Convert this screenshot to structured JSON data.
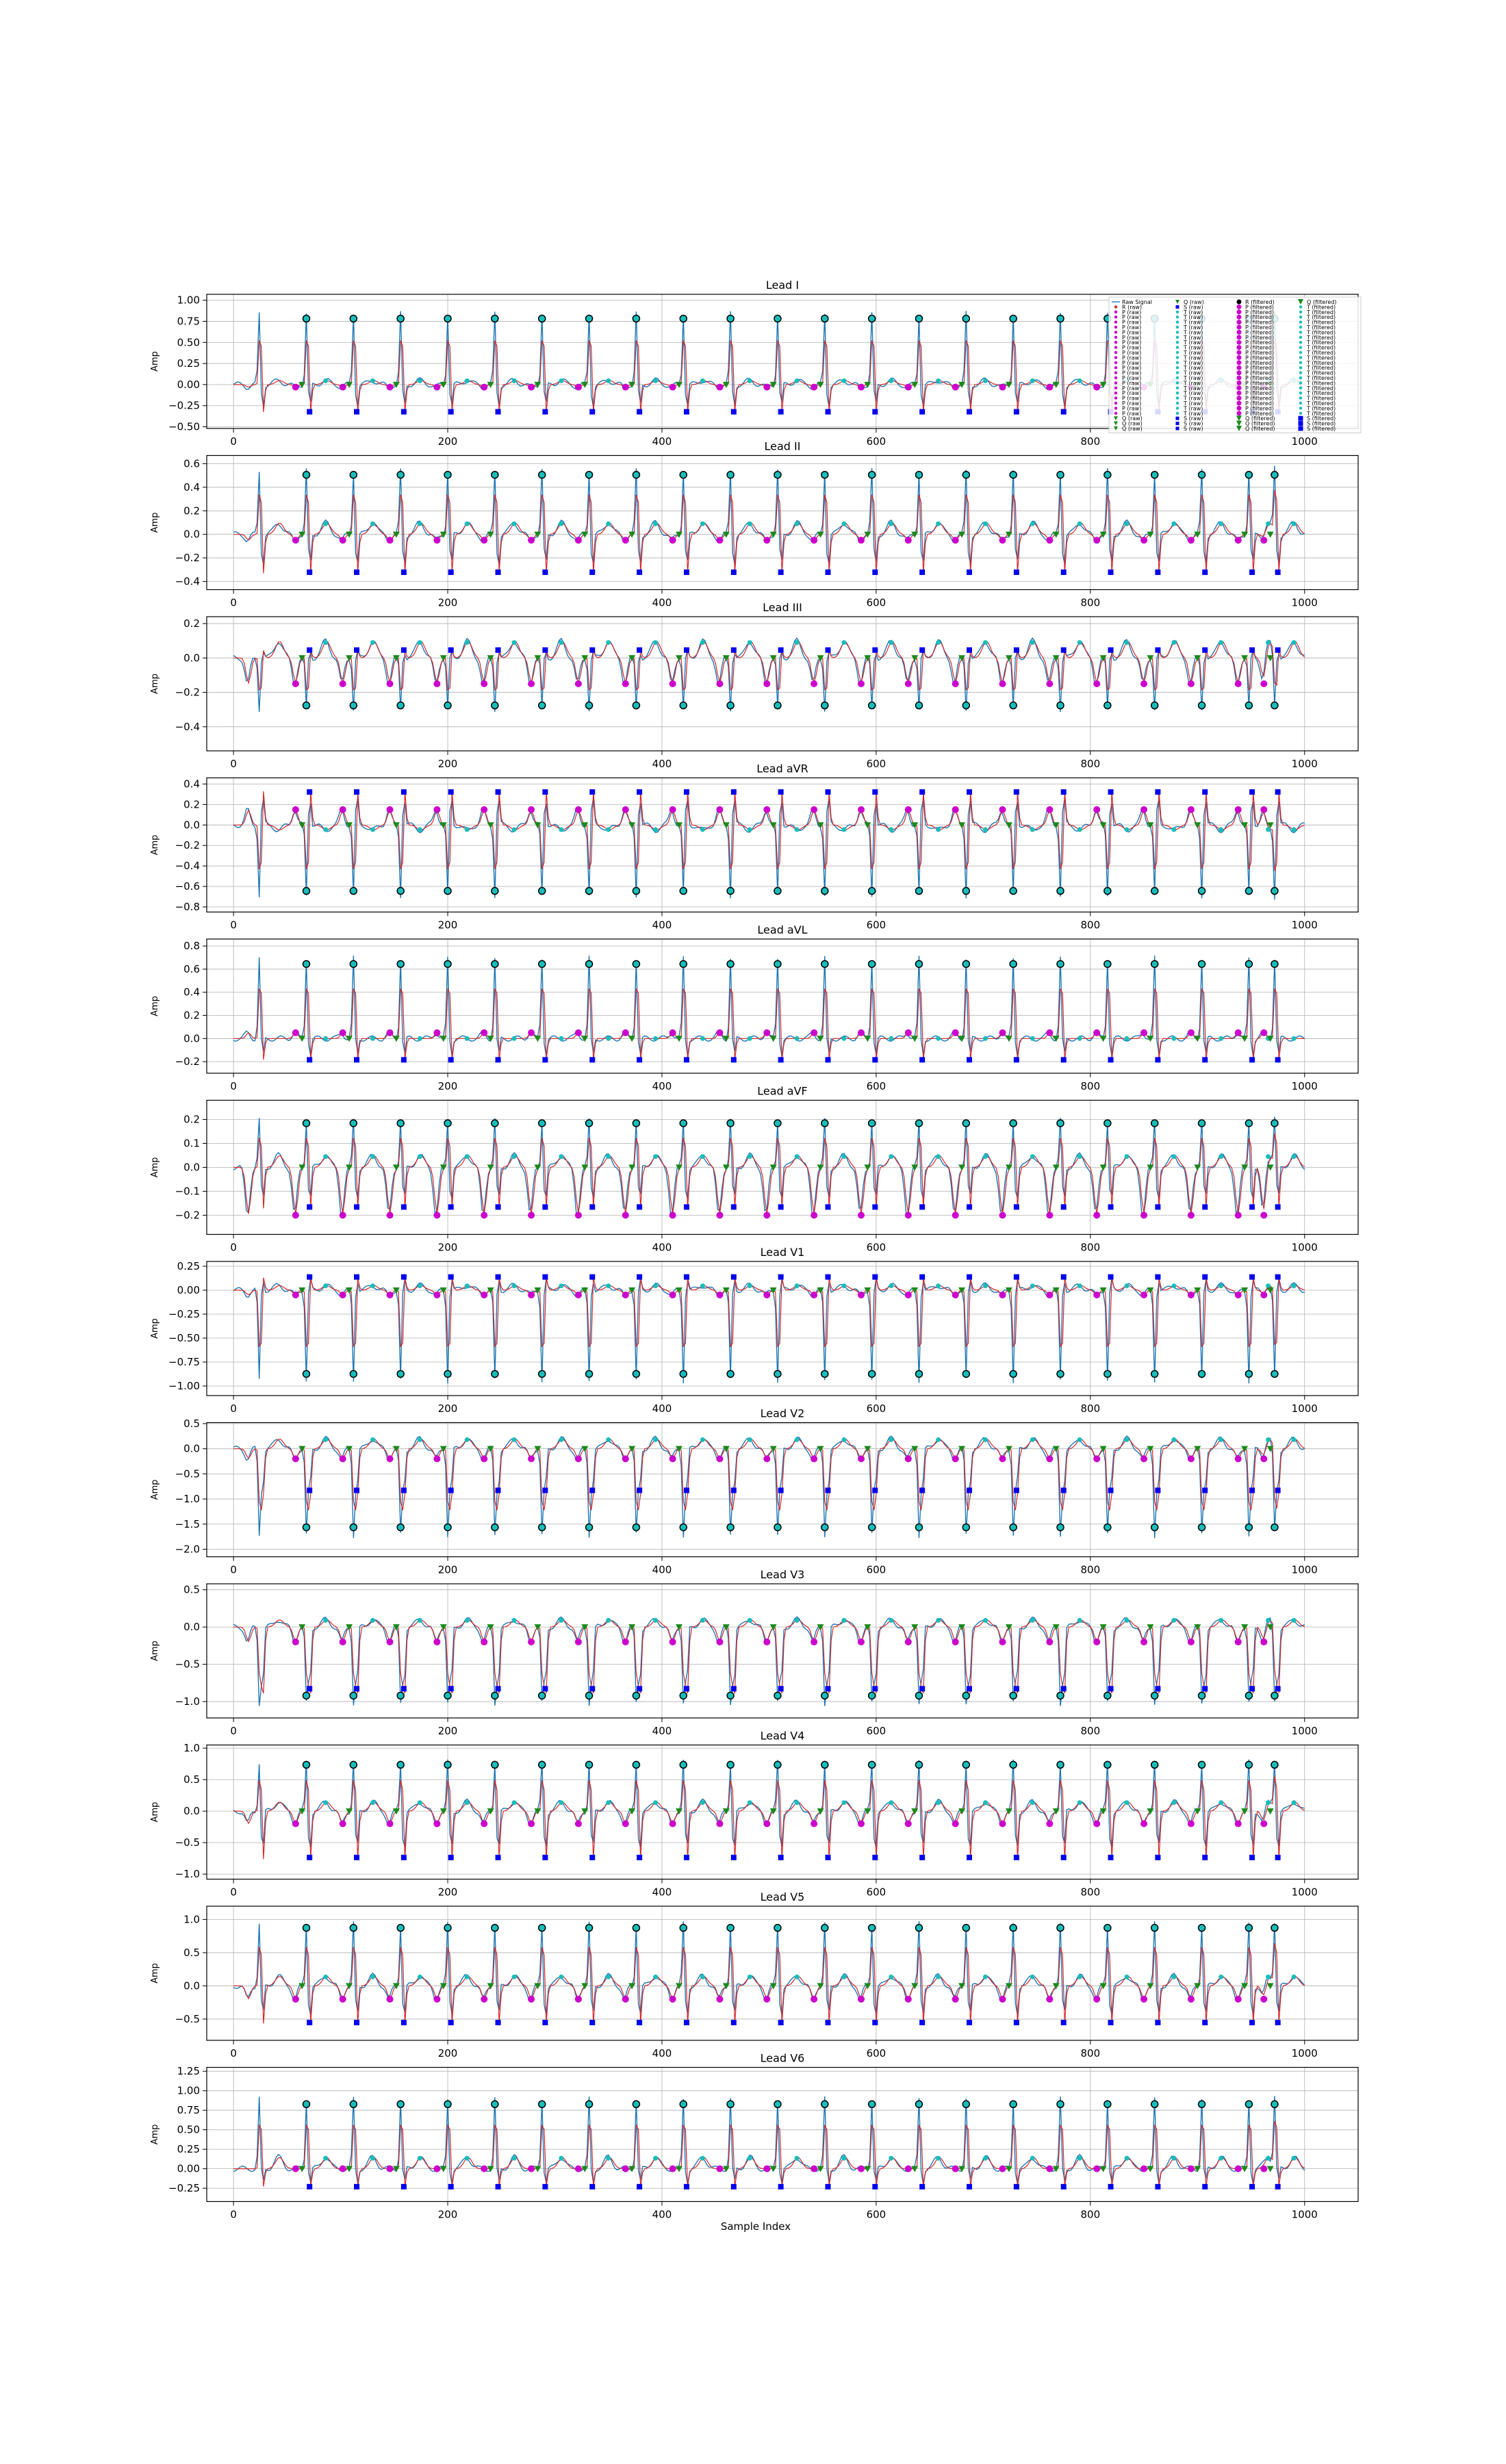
{
  "chart_data": {
    "type": "line",
    "xlabel": "Sample Index",
    "xlim": [
      0,
      1000
    ],
    "xticks": [
      "0",
      "200",
      "400",
      "600",
      "800",
      "1000"
    ],
    "grid": true,
    "colors": {
      "raw": "#1f77b4",
      "filtered": "#d62728",
      "R": "#000000",
      "P": "#cc00cc",
      "Q": "#1a8a1a",
      "S": "#0000ee",
      "T": "#17bebb"
    },
    "series": [
      {
        "name": "Raw Signal"
      },
      {
        "name": "R (filtered)"
      }
    ],
    "beats_x": [
      68,
      112,
      156,
      200,
      244,
      288,
      332,
      376,
      420,
      464,
      508,
      552,
      596,
      640,
      684,
      728,
      772,
      816,
      860,
      904,
      948,
      972
    ],
    "leads": [
      {
        "title": "Lead I",
        "ylabel": "Amp",
        "ylim": [
          -0.52,
          1.07
        ],
        "yticks": [
          "1.00",
          "0.75",
          "0.50",
          "0.25",
          "0.00",
          "−0.25",
          "−0.50"
        ],
        "ytick_values": [
          1.0,
          0.75,
          0.5,
          0.25,
          0.0,
          -0.25,
          -0.5
        ],
        "r": 0.85,
        "s": -0.35,
        "baseline": 0.0,
        "p": -0.03,
        "t": 0.05,
        "show_x_labels": true
      },
      {
        "title": "Lead II",
        "ylabel": "Amp",
        "ylim": [
          -0.47,
          0.67
        ],
        "yticks": [
          "0.6",
          "0.4",
          "0.2",
          "0.0",
          "−0.2",
          "−0.4"
        ],
        "ytick_values": [
          0.6,
          0.4,
          0.2,
          0.0,
          -0.2,
          -0.4
        ],
        "r": 0.55,
        "s": -0.35,
        "baseline": 0.0,
        "p": -0.05,
        "t": 0.1,
        "show_x_labels": true
      },
      {
        "title": "Lead III",
        "ylabel": "Amp",
        "ylim": [
          -0.54,
          0.24
        ],
        "yticks": [
          "0.2",
          "0.0",
          "−0.2",
          "−0.4"
        ],
        "ytick_values": [
          0.2,
          0.0,
          -0.2,
          -0.4
        ],
        "r": -0.3,
        "s": 0.05,
        "baseline": 0.0,
        "p": -0.15,
        "t": 0.1,
        "show_x_labels": true
      },
      {
        "title": "Lead aVR",
        "ylabel": "Amp",
        "ylim": [
          -0.85,
          0.46
        ],
        "yticks": [
          "0.4",
          "0.2",
          "0.0",
          "−0.2",
          "−0.4",
          "−0.6",
          "−0.8"
        ],
        "ytick_values": [
          0.4,
          0.2,
          0.0,
          -0.2,
          -0.4,
          -0.6,
          -0.8
        ],
        "r": -0.7,
        "s": 0.35,
        "baseline": 0.0,
        "p": 0.15,
        "t": -0.05,
        "show_x_labels": true
      },
      {
        "title": "Lead aVL",
        "ylabel": "Amp",
        "ylim": [
          -0.3,
          0.86
        ],
        "yticks": [
          "0.8",
          "0.6",
          "0.4",
          "0.2",
          "0.0",
          "−0.2"
        ],
        "ytick_values": [
          0.8,
          0.6,
          0.4,
          0.2,
          0.0,
          -0.2
        ],
        "r": 0.7,
        "s": -0.2,
        "baseline": 0.0,
        "p": 0.05,
        "t": 0.0,
        "show_x_labels": true
      },
      {
        "title": "Lead aVF",
        "ylabel": "Amp",
        "ylim": [
          -0.28,
          0.28
        ],
        "yticks": [
          "0.2",
          "0.1",
          "0.0",
          "−0.1",
          "−0.2"
        ],
        "ytick_values": [
          0.2,
          0.1,
          0.0,
          -0.1,
          -0.2
        ],
        "r": 0.2,
        "s": -0.18,
        "baseline": 0.0,
        "p": -0.2,
        "t": 0.05,
        "show_x_labels": true
      },
      {
        "title": "Lead V1",
        "ylabel": "Amp",
        "ylim": [
          -1.1,
          0.3
        ],
        "yticks": [
          "0.25",
          "0.00",
          "−0.25",
          "−0.50",
          "−0.75",
          "−1.00"
        ],
        "ytick_values": [
          0.25,
          0.0,
          -0.25,
          -0.5,
          -0.75,
          -1.0
        ],
        "r": -0.95,
        "s": 0.15,
        "baseline": 0.0,
        "p": -0.05,
        "t": 0.05,
        "show_x_labels": true
      },
      {
        "title": "Lead V2",
        "ylabel": "Amp",
        "ylim": [
          -2.15,
          0.52
        ],
        "yticks": [
          "0.5",
          "0.0",
          "−0.5",
          "−1.0",
          "−1.5",
          "−2.0"
        ],
        "ytick_values": [
          0.5,
          0.0,
          -0.5,
          -1.0,
          -1.5,
          -2.0
        ],
        "r": -1.7,
        "s": -0.9,
        "baseline": 0.0,
        "p": -0.2,
        "t": 0.2,
        "show_x_labels": true
      },
      {
        "title": "Lead V3",
        "ylabel": "Amp",
        "ylim": [
          -1.22,
          0.58
        ],
        "yticks": [
          "0.5",
          "0.0",
          "−0.5",
          "−1.0"
        ],
        "ytick_values": [
          0.5,
          0.0,
          -0.5,
          -1.0
        ],
        "r": -1.0,
        "s": -0.9,
        "baseline": 0.0,
        "p": -0.2,
        "t": 0.1,
        "show_x_labels": true
      },
      {
        "title": "Lead V4",
        "ylabel": "Amp",
        "ylim": [
          -1.08,
          1.05
        ],
        "yticks": [
          "1.0",
          "0.5",
          "0.0",
          "−0.5",
          "−1.0"
        ],
        "ytick_values": [
          1.0,
          0.5,
          0.0,
          -0.5,
          -1.0
        ],
        "r": 0.8,
        "s": -0.8,
        "baseline": 0.0,
        "p": -0.2,
        "t": 0.15,
        "show_x_labels": true
      },
      {
        "title": "Lead V5",
        "ylabel": "Amp",
        "ylim": [
          -0.82,
          1.2
        ],
        "yticks": [
          "1.0",
          "0.5",
          "0.0",
          "−0.5"
        ],
        "ytick_values": [
          1.0,
          0.5,
          0.0,
          -0.5
        ],
        "r": 0.95,
        "s": -0.6,
        "baseline": 0.0,
        "p": -0.2,
        "t": 0.15,
        "show_x_labels": true
      },
      {
        "title": "Lead V6",
        "ylabel": "Amp",
        "ylim": [
          -0.42,
          1.3
        ],
        "yticks": [
          "1.25",
          "1.00",
          "0.75",
          "0.50",
          "0.25",
          "0.00",
          "−0.25"
        ],
        "ytick_values": [
          1.25,
          1.0,
          0.75,
          0.5,
          0.25,
          0.0,
          -0.25
        ],
        "r": 0.9,
        "s": -0.25,
        "baseline": 0.0,
        "p": 0.0,
        "t": 0.15,
        "show_x_labels": true
      }
    ],
    "legend": {
      "placement": "top-right",
      "columns": [
        [
          {
            "label": "Raw Signal",
            "marker": "line",
            "color": "#1f77b4"
          },
          {
            "label": "R (raw)",
            "marker": "dot",
            "color": "#d62728"
          },
          {
            "label": "P (raw)",
            "marker": "dot",
            "color": "#cc00cc"
          },
          {
            "label": "P (raw)",
            "marker": "dot",
            "color": "#cc00cc"
          },
          {
            "label": "P (raw)",
            "marker": "dot",
            "color": "#cc00cc"
          },
          {
            "label": "P (raw)",
            "marker": "dot",
            "color": "#cc00cc"
          },
          {
            "label": "P (raw)",
            "marker": "dot",
            "color": "#cc00cc"
          },
          {
            "label": "P (raw)",
            "marker": "dot",
            "color": "#cc00cc"
          },
          {
            "label": "P (raw)",
            "marker": "dot",
            "color": "#cc00cc"
          },
          {
            "label": "P (raw)",
            "marker": "dot",
            "color": "#cc00cc"
          },
          {
            "label": "P (raw)",
            "marker": "dot",
            "color": "#cc00cc"
          },
          {
            "label": "P (raw)",
            "marker": "dot",
            "color": "#cc00cc"
          },
          {
            "label": "P (raw)",
            "marker": "dot",
            "color": "#cc00cc"
          },
          {
            "label": "P (raw)",
            "marker": "dot",
            "color": "#cc00cc"
          },
          {
            "label": "P (raw)",
            "marker": "dot",
            "color": "#cc00cc"
          },
          {
            "label": "P (raw)",
            "marker": "dot",
            "color": "#cc00cc"
          },
          {
            "label": "P (raw)",
            "marker": "dot",
            "color": "#cc00cc"
          },
          {
            "label": "P (raw)",
            "marker": "dot",
            "color": "#cc00cc"
          },
          {
            "label": "P (raw)",
            "marker": "dot",
            "color": "#cc00cc"
          },
          {
            "label": "P (raw)",
            "marker": "dot",
            "color": "#cc00cc"
          },
          {
            "label": "P (raw)",
            "marker": "dot",
            "color": "#cc00cc"
          },
          {
            "label": "P (raw)",
            "marker": "dot",
            "color": "#cc00cc"
          },
          {
            "label": "P (raw)",
            "marker": "dot",
            "color": "#cc00cc"
          },
          {
            "label": "Q (raw)",
            "marker": "tri",
            "color": "#1a8a1a"
          },
          {
            "label": "Q (raw)",
            "marker": "tri",
            "color": "#1a8a1a"
          },
          {
            "label": "Q (raw)",
            "marker": "tri",
            "color": "#1a8a1a"
          }
        ],
        [
          {
            "label": "Q (raw)",
            "marker": "tri",
            "color": "#1a8a1a"
          },
          {
            "label": "S (raw)",
            "marker": "sq",
            "color": "#0000ee"
          },
          {
            "label": "T (raw)",
            "marker": "dot",
            "color": "#17bebb"
          },
          {
            "label": "T (raw)",
            "marker": "dot",
            "color": "#17bebb"
          },
          {
            "label": "T (raw)",
            "marker": "dot",
            "color": "#17bebb"
          },
          {
            "label": "T (raw)",
            "marker": "dot",
            "color": "#17bebb"
          },
          {
            "label": "T (raw)",
            "marker": "dot",
            "color": "#17bebb"
          },
          {
            "label": "T (raw)",
            "marker": "dot",
            "color": "#17bebb"
          },
          {
            "label": "T (raw)",
            "marker": "dot",
            "color": "#17bebb"
          },
          {
            "label": "T (raw)",
            "marker": "dot",
            "color": "#17bebb"
          },
          {
            "label": "T (raw)",
            "marker": "dot",
            "color": "#17bebb"
          },
          {
            "label": "T (raw)",
            "marker": "dot",
            "color": "#17bebb"
          },
          {
            "label": "T (raw)",
            "marker": "dot",
            "color": "#17bebb"
          },
          {
            "label": "T (raw)",
            "marker": "dot",
            "color": "#17bebb"
          },
          {
            "label": "T (raw)",
            "marker": "dot",
            "color": "#17bebb"
          },
          {
            "label": "T (raw)",
            "marker": "dot",
            "color": "#17bebb"
          },
          {
            "label": "T (raw)",
            "marker": "dot",
            "color": "#17bebb"
          },
          {
            "label": "T (raw)",
            "marker": "dot",
            "color": "#17bebb"
          },
          {
            "label": "T (raw)",
            "marker": "dot",
            "color": "#17bebb"
          },
          {
            "label": "T (raw)",
            "marker": "dot",
            "color": "#17bebb"
          },
          {
            "label": "T (raw)",
            "marker": "dot",
            "color": "#17bebb"
          },
          {
            "label": "T (raw)",
            "marker": "dot",
            "color": "#17bebb"
          },
          {
            "label": "T (raw)",
            "marker": "dot",
            "color": "#17bebb"
          },
          {
            "label": "S (raw)",
            "marker": "sq",
            "color": "#0000ee"
          },
          {
            "label": "S (raw)",
            "marker": "sq",
            "color": "#0000ee"
          },
          {
            "label": "S (raw)",
            "marker": "sq",
            "color": "#0000ee"
          }
        ],
        [
          {
            "label": "R (filtered)",
            "marker": "bigdot",
            "color": "#000000"
          },
          {
            "label": "P (filtered)",
            "marker": "bigdot",
            "color": "#cc00cc"
          },
          {
            "label": "P (filtered)",
            "marker": "bigdot",
            "color": "#cc00cc"
          },
          {
            "label": "P (filtered)",
            "marker": "bigdot",
            "color": "#cc00cc"
          },
          {
            "label": "P (filtered)",
            "marker": "bigdot",
            "color": "#cc00cc"
          },
          {
            "label": "P (filtered)",
            "marker": "bigdot",
            "color": "#cc00cc"
          },
          {
            "label": "P (filtered)",
            "marker": "bigdot",
            "color": "#cc00cc"
          },
          {
            "label": "P (filtered)",
            "marker": "bigdot",
            "color": "#cc00cc"
          },
          {
            "label": "P (filtered)",
            "marker": "bigdot",
            "color": "#cc00cc"
          },
          {
            "label": "P (filtered)",
            "marker": "bigdot",
            "color": "#cc00cc"
          },
          {
            "label": "P (filtered)",
            "marker": "bigdot",
            "color": "#cc00cc"
          },
          {
            "label": "P (filtered)",
            "marker": "bigdot",
            "color": "#cc00cc"
          },
          {
            "label": "P (filtered)",
            "marker": "bigdot",
            "color": "#cc00cc"
          },
          {
            "label": "P (filtered)",
            "marker": "bigdot",
            "color": "#cc00cc"
          },
          {
            "label": "P (filtered)",
            "marker": "bigdot",
            "color": "#cc00cc"
          },
          {
            "label": "P (filtered)",
            "marker": "bigdot",
            "color": "#cc00cc"
          },
          {
            "label": "P (filtered)",
            "marker": "bigdot",
            "color": "#cc00cc"
          },
          {
            "label": "P (filtered)",
            "marker": "bigdot",
            "color": "#cc00cc"
          },
          {
            "label": "P (filtered)",
            "marker": "bigdot",
            "color": "#cc00cc"
          },
          {
            "label": "P (filtered)",
            "marker": "bigdot",
            "color": "#cc00cc"
          },
          {
            "label": "P (filtered)",
            "marker": "bigdot",
            "color": "#cc00cc"
          },
          {
            "label": "P (filtered)",
            "marker": "bigdot",
            "color": "#cc00cc"
          },
          {
            "label": "P (filtered)",
            "marker": "bigdot",
            "color": "#cc00cc"
          },
          {
            "label": "Q (filtered)",
            "marker": "bigtri",
            "color": "#1a8a1a"
          },
          {
            "label": "Q (filtered)",
            "marker": "bigtri",
            "color": "#1a8a1a"
          },
          {
            "label": "Q (filtered)",
            "marker": "bigtri",
            "color": "#1a8a1a"
          }
        ],
        [
          {
            "label": "Q (filtered)",
            "marker": "bigtri",
            "color": "#1a8a1a"
          },
          {
            "label": "T (filtered)",
            "marker": "dot",
            "color": "#17bebb"
          },
          {
            "label": "T (filtered)",
            "marker": "dot",
            "color": "#17bebb"
          },
          {
            "label": "T (filtered)",
            "marker": "dot",
            "color": "#17bebb"
          },
          {
            "label": "T (filtered)",
            "marker": "dot",
            "color": "#17bebb"
          },
          {
            "label": "T (filtered)",
            "marker": "dot",
            "color": "#17bebb"
          },
          {
            "label": "T (filtered)",
            "marker": "dot",
            "color": "#17bebb"
          },
          {
            "label": "T (filtered)",
            "marker": "dot",
            "color": "#17bebb"
          },
          {
            "label": "T (filtered)",
            "marker": "dot",
            "color": "#17bebb"
          },
          {
            "label": "T (filtered)",
            "marker": "dot",
            "color": "#17bebb"
          },
          {
            "label": "T (filtered)",
            "marker": "dot",
            "color": "#17bebb"
          },
          {
            "label": "T (filtered)",
            "marker": "dot",
            "color": "#17bebb"
          },
          {
            "label": "T (filtered)",
            "marker": "dot",
            "color": "#17bebb"
          },
          {
            "label": "T (filtered)",
            "marker": "dot",
            "color": "#17bebb"
          },
          {
            "label": "T (filtered)",
            "marker": "dot",
            "color": "#17bebb"
          },
          {
            "label": "T (filtered)",
            "marker": "dot",
            "color": "#17bebb"
          },
          {
            "label": "T (filtered)",
            "marker": "dot",
            "color": "#17bebb"
          },
          {
            "label": "T (filtered)",
            "marker": "dot",
            "color": "#17bebb"
          },
          {
            "label": "T (filtered)",
            "marker": "dot",
            "color": "#17bebb"
          },
          {
            "label": "T (filtered)",
            "marker": "dot",
            "color": "#17bebb"
          },
          {
            "label": "T (filtered)",
            "marker": "dot",
            "color": "#17bebb"
          },
          {
            "label": "T (filtered)",
            "marker": "dot",
            "color": "#17bebb"
          },
          {
            "label": "T (filtered)",
            "marker": "dot",
            "color": "#17bebb"
          },
          {
            "label": "S (filtered)",
            "marker": "bigsq",
            "color": "#0000ee"
          },
          {
            "label": "S (filtered)",
            "marker": "bigsq",
            "color": "#0000ee"
          },
          {
            "label": "S (filtered)",
            "marker": "bigsq",
            "color": "#0000ee"
          }
        ]
      ]
    }
  }
}
